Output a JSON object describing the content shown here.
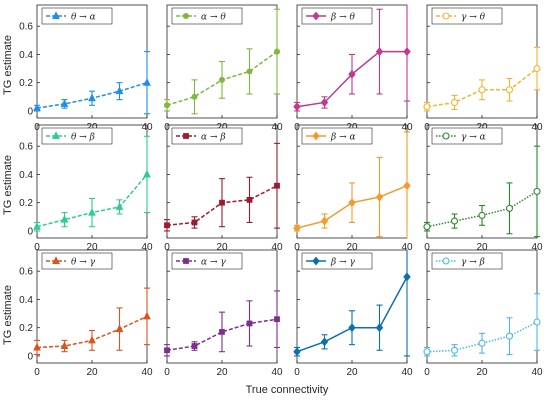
{
  "figure": {
    "xlabel": "True connectivity",
    "ylabel": "TG estimate"
  },
  "chart_data": [
    {
      "type": "line",
      "legend": "θ → α",
      "color": "#1f8ee8",
      "marker": "triangle",
      "dash": "4,2",
      "xlim": [
        0,
        40
      ],
      "ylim": [
        -0.05,
        0.75
      ],
      "yticks": [
        0,
        0.2,
        0.4,
        0.6
      ],
      "xticks": [
        0,
        20,
        40
      ],
      "x": [
        0,
        10,
        20,
        30,
        40
      ],
      "y": [
        0.02,
        0.05,
        0.09,
        0.14,
        0.2
      ],
      "err": [
        0.02,
        0.03,
        0.05,
        0.06,
        0.22
      ]
    },
    {
      "type": "line",
      "legend": "α → θ",
      "color": "#7fb83c",
      "marker": "circle-filled",
      "dash": "4,2",
      "xlim": [
        0,
        40
      ],
      "ylim": [
        -0.05,
        0.75
      ],
      "yticks": [
        0,
        0.2,
        0.4,
        0.6
      ],
      "xticks": [
        0,
        20,
        40
      ],
      "x": [
        0,
        10,
        20,
        30,
        40
      ],
      "y": [
        0.04,
        0.1,
        0.22,
        0.28,
        0.42
      ],
      "err": [
        0.04,
        0.12,
        0.13,
        0.16,
        0.3
      ]
    },
    {
      "type": "line",
      "legend": "β → θ",
      "color": "#c2398f",
      "marker": "diamond",
      "dash": "",
      "xlim": [
        0,
        40
      ],
      "ylim": [
        -0.05,
        0.75
      ],
      "yticks": [
        0,
        0.2,
        0.4,
        0.6
      ],
      "xticks": [
        0,
        20,
        40
      ],
      "x": [
        0,
        10,
        20,
        30,
        40
      ],
      "y": [
        0.03,
        0.06,
        0.26,
        0.42,
        0.42
      ],
      "err": [
        0.03,
        0.04,
        0.14,
        0.3,
        0.35
      ]
    },
    {
      "type": "line",
      "legend": "γ → θ",
      "color": "#f2b533",
      "marker": "circle-open",
      "dash": "4,2",
      "xlim": [
        0,
        40
      ],
      "ylim": [
        -0.05,
        0.75
      ],
      "yticks": [
        0,
        0.2,
        0.4,
        0.6
      ],
      "xticks": [
        0,
        20,
        40
      ],
      "x": [
        0,
        10,
        20,
        30,
        40
      ],
      "y": [
        0.03,
        0.06,
        0.15,
        0.15,
        0.3
      ],
      "err": [
        0.03,
        0.05,
        0.07,
        0.08,
        0.15
      ]
    },
    {
      "type": "line",
      "legend": "θ → β",
      "color": "#2fcc8f",
      "marker": "triangle",
      "dash": "4,2",
      "xlim": [
        0,
        40
      ],
      "ylim": [
        -0.05,
        0.75
      ],
      "yticks": [
        0,
        0.2,
        0.4,
        0.6
      ],
      "xticks": [
        0,
        20,
        40
      ],
      "x": [
        0,
        10,
        20,
        30,
        40
      ],
      "y": [
        0.03,
        0.08,
        0.13,
        0.17,
        0.4
      ],
      "err": [
        0.03,
        0.05,
        0.1,
        0.05,
        0.27
      ]
    },
    {
      "type": "line",
      "legend": "α → β",
      "color": "#9b1b2f",
      "marker": "square",
      "dash": "4,2",
      "xlim": [
        0,
        40
      ],
      "ylim": [
        -0.05,
        0.75
      ],
      "yticks": [
        0,
        0.2,
        0.4,
        0.6
      ],
      "xticks": [
        0,
        20,
        40
      ],
      "x": [
        0,
        10,
        20,
        30,
        40
      ],
      "y": [
        0.04,
        0.06,
        0.2,
        0.22,
        0.32
      ],
      "err": [
        0.04,
        0.04,
        0.17,
        0.16,
        0.3
      ]
    },
    {
      "type": "line",
      "legend": "β → α",
      "color": "#f79a2e",
      "marker": "diamond",
      "dash": "",
      "xlim": [
        0,
        40
      ],
      "ylim": [
        -0.05,
        0.75
      ],
      "yticks": [
        0,
        0.2,
        0.4,
        0.6
      ],
      "xticks": [
        0,
        20,
        40
      ],
      "x": [
        0,
        10,
        20,
        30,
        40
      ],
      "y": [
        0.02,
        0.07,
        0.2,
        0.24,
        0.32
      ],
      "err": [
        0.02,
        0.05,
        0.14,
        0.28,
        0.38
      ]
    },
    {
      "type": "line",
      "legend": "γ → α",
      "color": "#2a8a2a",
      "marker": "circle-open",
      "dash": "1.5,1.5",
      "xlim": [
        0,
        40
      ],
      "ylim": [
        -0.05,
        0.75
      ],
      "yticks": [
        0,
        0.2,
        0.4,
        0.6
      ],
      "xticks": [
        0,
        20,
        40
      ],
      "x": [
        0,
        10,
        20,
        30,
        40
      ],
      "y": [
        0.03,
        0.07,
        0.11,
        0.16,
        0.28
      ],
      "err": [
        0.03,
        0.05,
        0.07,
        0.18,
        0.32
      ]
    },
    {
      "type": "line",
      "legend": "θ → γ",
      "color": "#d9541e",
      "marker": "triangle",
      "dash": "4,2",
      "xlim": [
        0,
        40
      ],
      "ylim": [
        -0.05,
        0.75
      ],
      "yticks": [
        0,
        0.2,
        0.4,
        0.6
      ],
      "xticks": [
        0,
        20,
        40
      ],
      "x": [
        0,
        10,
        20,
        30,
        40
      ],
      "y": [
        0.06,
        0.07,
        0.11,
        0.19,
        0.28
      ],
      "err": [
        0.05,
        0.04,
        0.07,
        0.15,
        0.2
      ]
    },
    {
      "type": "line",
      "legend": "α → γ",
      "color": "#7e2f8e",
      "marker": "square",
      "dash": "4,2",
      "xlim": [
        0,
        40
      ],
      "ylim": [
        -0.05,
        0.75
      ],
      "yticks": [
        0,
        0.2,
        0.4,
        0.6
      ],
      "xticks": [
        0,
        20,
        40
      ],
      "x": [
        0,
        10,
        20,
        30,
        40
      ],
      "y": [
        0.04,
        0.07,
        0.17,
        0.23,
        0.26
      ],
      "err": [
        0.04,
        0.03,
        0.14,
        0.16,
        0.2
      ]
    },
    {
      "type": "line",
      "legend": "β → γ",
      "color": "#0c6fb0",
      "marker": "diamond",
      "dash": "",
      "xlim": [
        0,
        40
      ],
      "ylim": [
        -0.05,
        0.75
      ],
      "yticks": [
        0,
        0.2,
        0.4,
        0.6
      ],
      "xticks": [
        0,
        20,
        40
      ],
      "x": [
        0,
        10,
        20,
        30,
        40
      ],
      "y": [
        0.03,
        0.1,
        0.2,
        0.2,
        0.56
      ],
      "err": [
        0.03,
        0.05,
        0.12,
        0.16,
        0.56
      ]
    },
    {
      "type": "line",
      "legend": "γ → β",
      "color": "#4db8ee",
      "marker": "circle-open",
      "dash": "1.5,1.5",
      "xlim": [
        0,
        40
      ],
      "ylim": [
        -0.05,
        0.75
      ],
      "yticks": [
        0,
        0.2,
        0.4,
        0.6
      ],
      "xticks": [
        0,
        20,
        40
      ],
      "x": [
        0,
        10,
        20,
        30,
        40
      ],
      "y": [
        0.03,
        0.04,
        0.09,
        0.14,
        0.24
      ],
      "err": [
        0.03,
        0.04,
        0.07,
        0.13,
        0.2
      ]
    }
  ]
}
